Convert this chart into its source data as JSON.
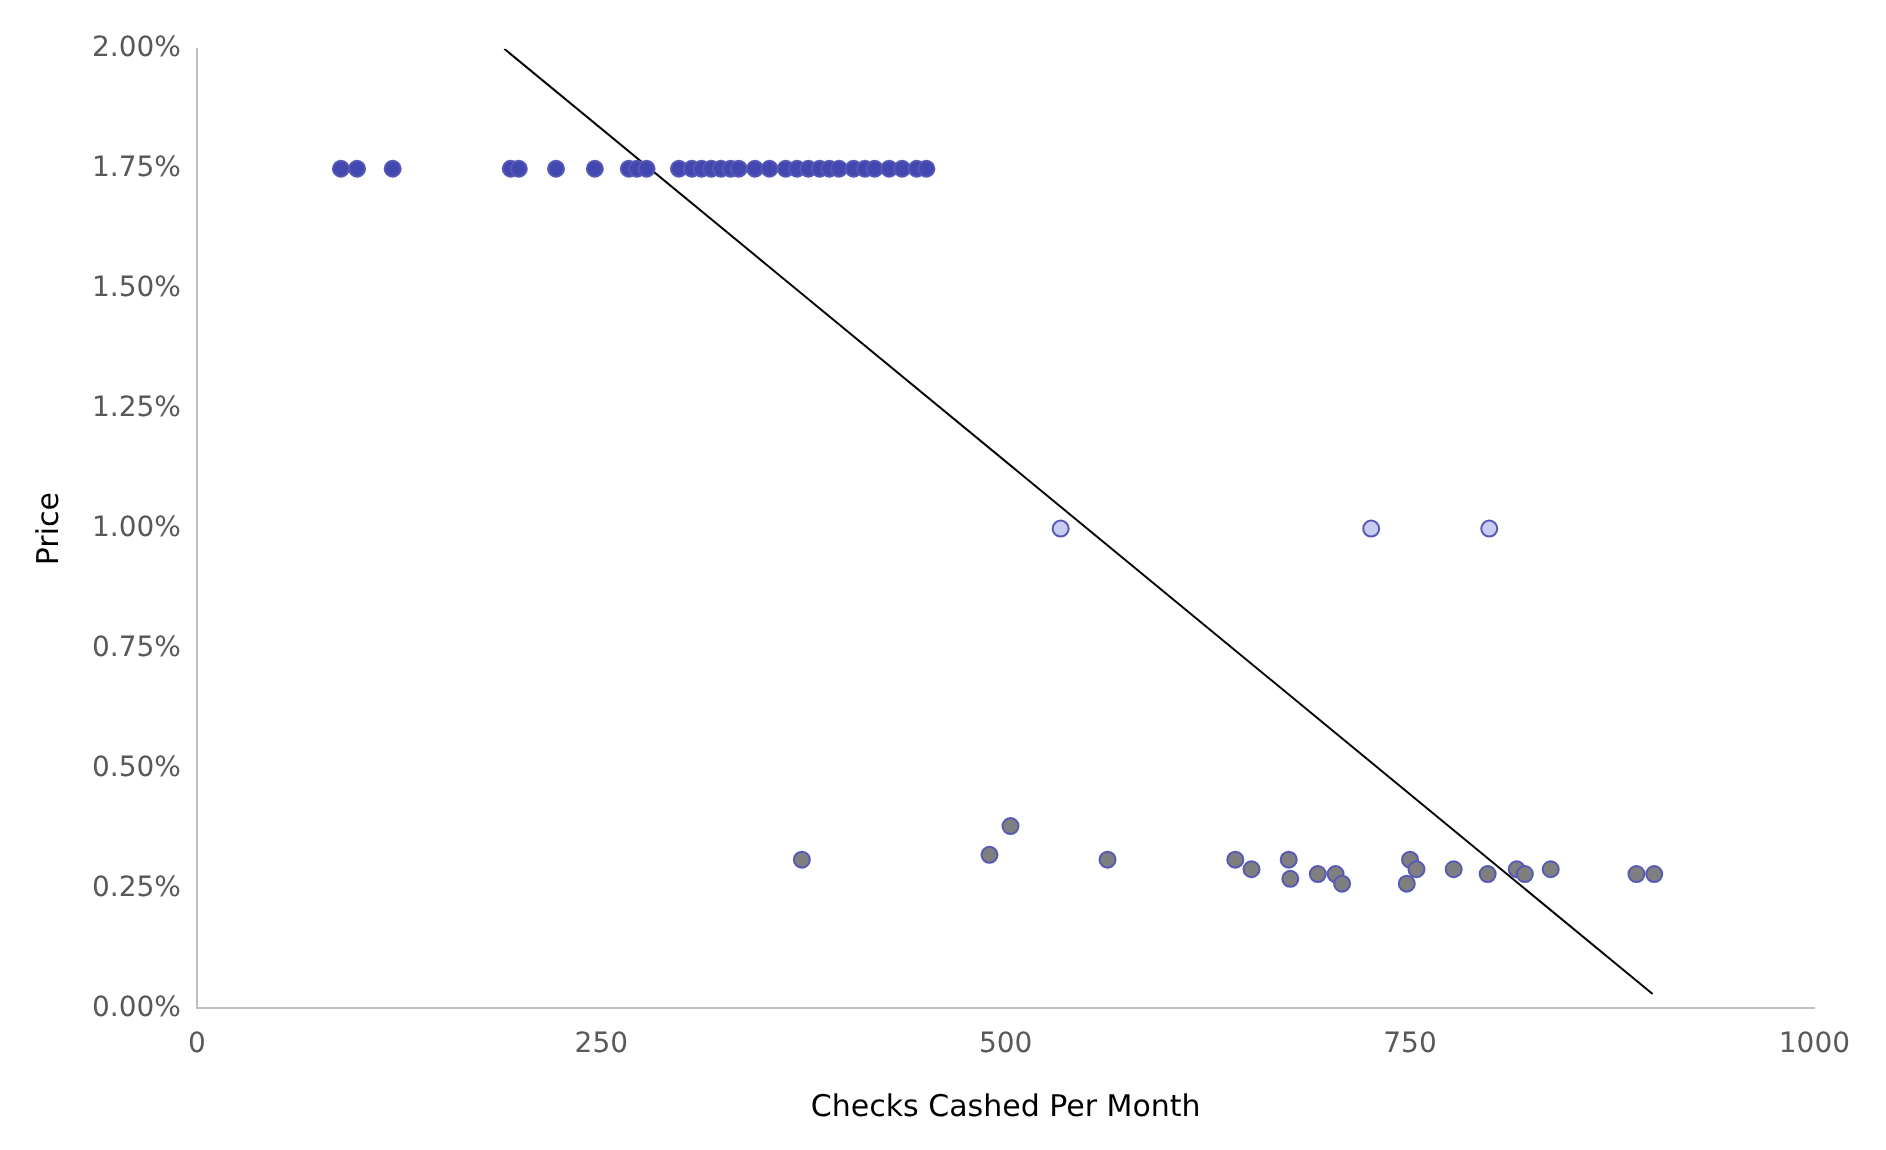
{
  "chart_data": {
    "type": "scatter",
    "xlabel": "Checks Cashed Per Month",
    "ylabel": "Price",
    "xlim": [
      0,
      1000
    ],
    "xticks": [
      0,
      250,
      500,
      750,
      1000
    ],
    "ylim": [
      0,
      2
    ],
    "yticks": [
      {
        "value": 0,
        "label": "0.00%"
      },
      {
        "value": 0.25,
        "label": "0.25%"
      },
      {
        "value": 0.5,
        "label": "0.50%"
      },
      {
        "value": 0.75,
        "label": "0.75%"
      },
      {
        "value": 1,
        "label": "1.00%"
      },
      {
        "value": 1.25,
        "label": "1.25%"
      },
      {
        "value": 1.5,
        "label": "1.50%"
      },
      {
        "value": 1.75,
        "label": "1.75%"
      },
      {
        "value": 2,
        "label": "2.00%"
      }
    ],
    "grid": false,
    "legend": false,
    "marker": "circle",
    "series": [
      {
        "color": "#4348b0",
        "x": [
          89,
          99,
          121,
          194,
          199,
          222,
          246,
          267,
          272,
          278,
          298,
          306,
          312,
          318,
          324,
          330,
          335,
          345,
          354,
          364,
          371,
          378,
          385,
          391,
          397,
          406,
          413,
          419,
          428,
          436,
          445,
          451
        ],
        "values": [
          1.75,
          1.75,
          1.75,
          1.75,
          1.75,
          1.75,
          1.75,
          1.75,
          1.75,
          1.75,
          1.75,
          1.75,
          1.75,
          1.75,
          1.75,
          1.75,
          1.75,
          1.75,
          1.75,
          1.75,
          1.75,
          1.75,
          1.75,
          1.75,
          1.75,
          1.75,
          1.75,
          1.75,
          1.75,
          1.75,
          1.75,
          1.75
        ]
      },
      {
        "color": "#c8ccf0",
        "x": [
          534,
          726,
          799
        ],
        "values": [
          1.0,
          1.0,
          1.0
        ]
      },
      {
        "color": "#7f7f7f",
        "x": [
          374,
          490,
          503,
          563,
          642,
          652,
          675,
          676,
          693,
          704,
          708,
          750,
          754,
          748,
          777,
          798,
          816,
          821,
          837,
          890,
          901
        ],
        "values": [
          0.31,
          0.32,
          0.38,
          0.31,
          0.31,
          0.29,
          0.31,
          0.27,
          0.28,
          0.28,
          0.26,
          0.31,
          0.29,
          0.26,
          0.29,
          0.28,
          0.29,
          0.28,
          0.29,
          0.28,
          0.28
        ]
      },
      {
        "type": "line",
        "color": "#000000",
        "x": [
          190,
          900
        ],
        "values": [
          2.0,
          0.03
        ],
        "marker": "none",
        "line_style": "solid"
      }
    ]
  }
}
